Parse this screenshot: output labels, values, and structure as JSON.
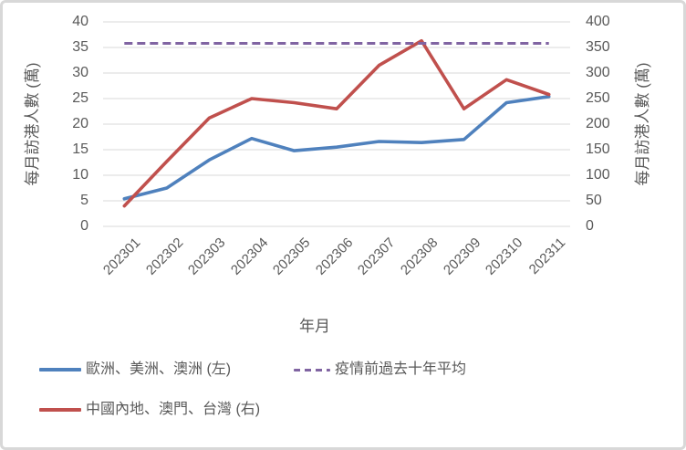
{
  "chart_data": {
    "type": "line",
    "title": "",
    "categories": [
      "202301",
      "202302",
      "202303",
      "202304",
      "202305",
      "202306",
      "202307",
      "202308",
      "202309",
      "202310",
      "202311"
    ],
    "series": [
      {
        "name": "歐洲、美洲、澳洲 (左)",
        "axis": "left",
        "color": "#4F81BD",
        "line_style": "solid",
        "values": [
          5.4,
          7.5,
          13,
          17.2,
          14.8,
          15.5,
          16.6,
          16.4,
          17,
          24.2,
          25.4
        ]
      },
      {
        "name": "中國內地、澳門、台灣 (右)",
        "axis": "right",
        "color": "#C0504D",
        "line_style": "solid",
        "values": [
          40,
          127,
          212,
          250,
          242,
          230,
          315,
          363,
          230,
          287,
          258
        ]
      },
      {
        "name": "疫情前過去十年平均",
        "axis": "right",
        "color": "#8064A2",
        "line_style": "dashed",
        "values": [
          358,
          358,
          358,
          358,
          358,
          358,
          358,
          358,
          358,
          358,
          358
        ]
      }
    ],
    "x_axis": {
      "title": "年月",
      "tick_rotation": -45
    },
    "left_axis": {
      "title": "每月訪港人數 (萬)",
      "min": 0,
      "max": 40,
      "step": 5
    },
    "right_axis": {
      "title": "每月訪港人數 (萬)",
      "min": 0,
      "max": 400,
      "step": 50
    },
    "grid": true,
    "legend_position": "bottom"
  },
  "legend": {
    "items": [
      {
        "label": "歐洲、美洲、澳洲 (左)",
        "color": "#4F81BD",
        "style": "solid"
      },
      {
        "label": "疫情前過去十年平均",
        "color": "#8064A2",
        "style": "dashed"
      },
      {
        "label": "中國內地、澳門、台灣 (右)",
        "color": "#C0504D",
        "style": "solid"
      }
    ]
  },
  "colors": {
    "grid": "#D9D9D9",
    "text": "#595959",
    "background": "#FFFFFF",
    "frame": "#D8D8D8",
    "blue_series": "#4F81BD",
    "red_series": "#C0504D",
    "purple_series": "#8064A2"
  }
}
